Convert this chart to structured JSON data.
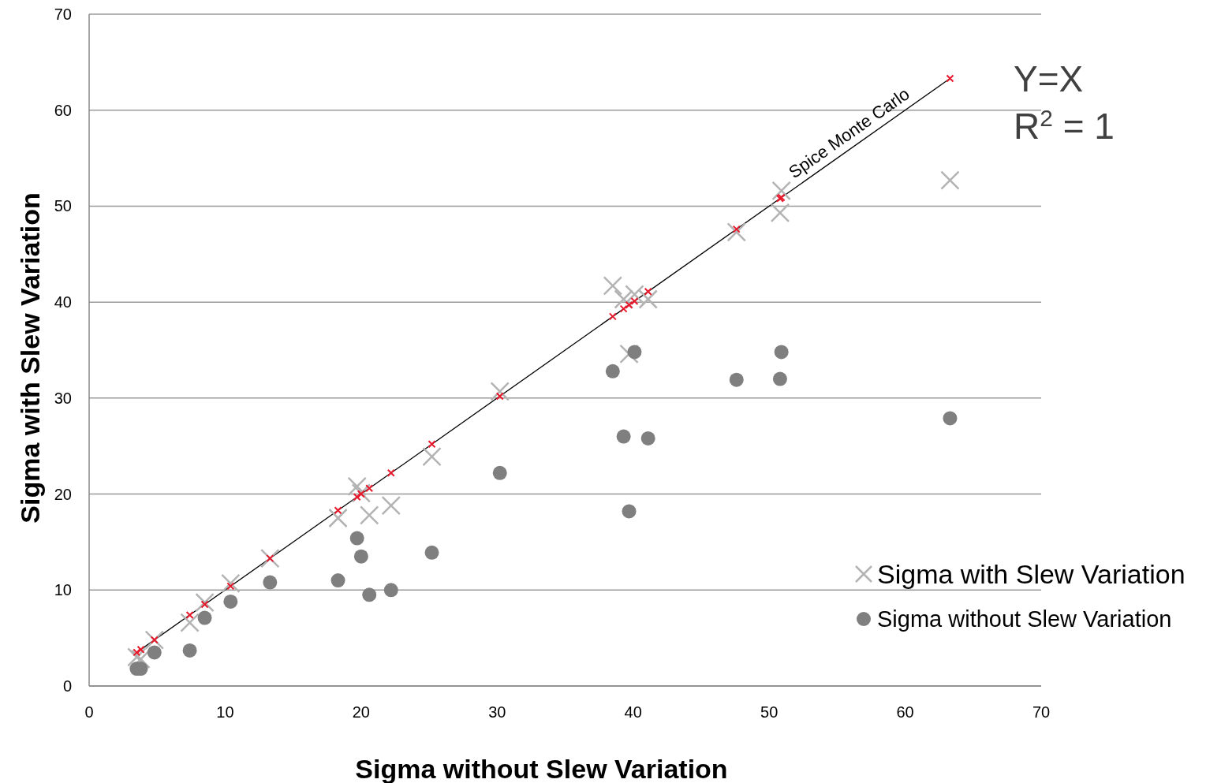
{
  "chart_data": {
    "type": "scatter",
    "xlabel": "Sigma without Slew Variation",
    "ylabel": "Sigma with  Slew Variation",
    "annotations": [
      "Y=X",
      "R$^{2}$ = 1"
    ],
    "xlim": [
      0,
      70
    ],
    "xticks": [
      0,
      10,
      20,
      30,
      40,
      50,
      60,
      70
    ],
    "ylim": [
      0,
      70
    ],
    "yticks": [
      0,
      10,
      20,
      30,
      40,
      50,
      60,
      70
    ],
    "grid": "y",
    "legend": "bottom right",
    "x": [
      3.5,
      3.8,
      4.8,
      7.4,
      8.5,
      10.4,
      13.3,
      18.3,
      19.7,
      20.0,
      20.6,
      22.2,
      25.2,
      30.2,
      38.5,
      39.3,
      39.7,
      40.1,
      41.1,
      47.6,
      50.8,
      50.9,
      63.3
    ],
    "series": [
      {
        "name": "Sigma with Slew Variation",
        "color": "#b3b3b3",
        "marker": "cross",
        "values": [
          3.0,
          2.8,
          4.8,
          6.6,
          8.7,
          10.7,
          13.3,
          17.5,
          20.8,
          20.1,
          17.8,
          18.8,
          23.9,
          30.7,
          41.7,
          40.3,
          34.6,
          40.8,
          40.3,
          47.3,
          49.3,
          51.6,
          52.7
        ]
      },
      {
        "name": "Sigma without Slew Variation",
        "color": "#7f7f7f",
        "marker": "circle",
        "values": [
          1.8,
          1.8,
          3.5,
          3.7,
          7.1,
          8.8,
          10.8,
          11.0,
          15.4,
          13.5,
          9.5,
          10.0,
          13.9,
          22.2,
          32.8,
          26.0,
          18.2,
          34.8,
          25.8,
          31.9,
          32.0,
          34.8,
          27.9
        ]
      },
      {
        "color": "#e8192c",
        "marker": "cross",
        "values": [
          3.5,
          3.8,
          4.8,
          7.4,
          8.5,
          10.4,
          13.3,
          18.3,
          19.7,
          20.0,
          20.6,
          22.2,
          25.2,
          30.2,
          38.5,
          39.3,
          39.7,
          40.1,
          41.1,
          47.6,
          50.8,
          50.9,
          63.3
        ]
      },
      {
        "type": "line",
        "name": "Spice Monte Carlo",
        "color": "#000000",
        "x": [
          3.5,
          63.3
        ],
        "values": [
          3.5,
          63.3
        ]
      }
    ]
  }
}
